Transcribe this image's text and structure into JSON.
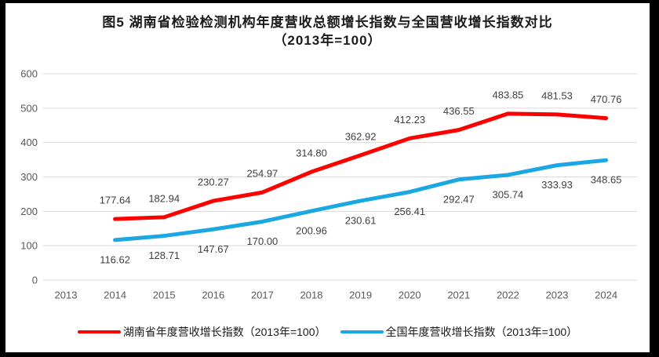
{
  "title": {
    "line1": "图5 湖南省检验检测机构年度营收总额增长指数与全国营收增长指数对比",
    "line2": "（2013年=100）"
  },
  "chart_data": {
    "type": "line",
    "title": "图5 湖南省检验检测机构年度营收总额增长指数与全国营收增长指数对比（2013年=100）",
    "categories": [
      "2013",
      "2014",
      "2015",
      "2016",
      "2017",
      "2018",
      "2019",
      "2020",
      "2021",
      "2022",
      "2023",
      "2024"
    ],
    "y_ticks": [
      0,
      100,
      200,
      300,
      400,
      500,
      600
    ],
    "ylim": [
      0,
      600
    ],
    "grid": true,
    "legend_position": "bottom",
    "series": [
      {
        "name": "湖南省年度营收增长指数（2013年=100）",
        "color": "#FF0000",
        "start_category": "2014",
        "values": [
          177.64,
          182.94,
          230.27,
          254.97,
          314.8,
          362.92,
          412.23,
          436.55,
          483.85,
          481.53,
          470.76
        ],
        "labels": [
          "177.64",
          "182.94",
          "230.27",
          "254.97",
          "314.80",
          "362.92",
          "412.23",
          "436.55",
          "483.85",
          "481.53",
          "470.76"
        ],
        "label_position": "above"
      },
      {
        "name": "全国年度营收增长指数（2013年=100）",
        "color": "#1BA8E2",
        "start_category": "2014",
        "values": [
          116.62,
          128.71,
          147.67,
          170.0,
          200.96,
          230.61,
          256.41,
          292.47,
          305.74,
          333.93,
          348.65
        ],
        "labels": [
          "116.62",
          "128.71",
          "147.67",
          "170.00",
          "200.96",
          "230.61",
          "256.41",
          "292.47",
          "305.74",
          "333.93",
          "348.65"
        ],
        "label_position": "below"
      }
    ]
  },
  "colors": {
    "hunan_line": "#FF0000",
    "national_line": "#1BA8E2",
    "gridline": "#D9D9D9",
    "axis_text": "#595959",
    "data_label_text": "#404040",
    "border": "#000000",
    "background": "#FFFFFF"
  }
}
